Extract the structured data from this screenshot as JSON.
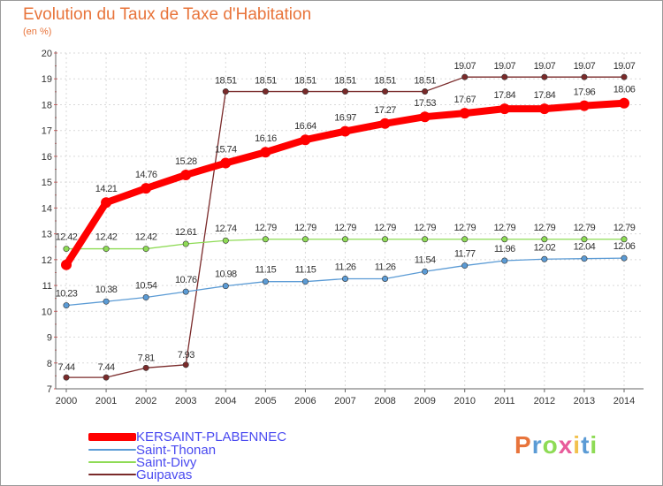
{
  "chart_data": {
    "type": "line",
    "title": "Evolution du Taux de Taxe d'Habitation",
    "unit_label": "(en %)",
    "x": [
      "2000",
      "2001",
      "2002",
      "2003",
      "2004",
      "2005",
      "2006",
      "2007",
      "2008",
      "2009",
      "2010",
      "2011",
      "2012",
      "2013",
      "2014"
    ],
    "ylim": [
      7,
      20
    ],
    "yticks": [
      "7",
      "8",
      "9",
      "10",
      "11",
      "12",
      "13",
      "14",
      "15",
      "16",
      "17",
      "18",
      "19",
      "20"
    ],
    "grid": true,
    "legend_position": "bottom-left",
    "series": [
      {
        "name": "KERSAINT-PLABENNEC",
        "color": "#ff0000",
        "values": [
          11.8,
          14.21,
          14.76,
          15.28,
          15.74,
          16.16,
          16.64,
          16.97,
          17.27,
          17.53,
          17.67,
          17.84,
          17.84,
          17.96,
          18.06
        ],
        "labels": [
          "",
          "14.21",
          "14.76",
          "15.28",
          "15.74",
          "16.16",
          "16.64",
          "16.97",
          "17.27",
          "17.53",
          "17.67",
          "17.84",
          "17.84",
          "17.96",
          "18.06"
        ]
      },
      {
        "name": "Saint-Thonan",
        "color": "#5b9bd5",
        "values": [
          10.23,
          10.38,
          10.54,
          10.76,
          10.98,
          11.15,
          11.15,
          11.26,
          11.26,
          11.54,
          11.77,
          11.96,
          12.02,
          12.04,
          12.06
        ],
        "labels": [
          "10.23",
          "10.38",
          "10.54",
          "10.76",
          "10.98",
          "11.15",
          "11.15",
          "11.26",
          "11.26",
          "11.54",
          "11.77",
          "11.96",
          "12.02",
          "12.04",
          "12.06"
        ]
      },
      {
        "name": "Saint-Divy",
        "color": "#8edb55",
        "values": [
          12.42,
          12.42,
          12.42,
          12.61,
          12.74,
          12.79,
          12.79,
          12.79,
          12.79,
          12.79,
          12.79,
          12.79,
          12.79,
          12.79,
          12.79
        ],
        "labels": [
          "12.42",
          "12.42",
          "12.42",
          "12.61",
          "12.74",
          "12.79",
          "12.79",
          "12.79",
          "12.79",
          "12.79",
          "12.79",
          "12.79",
          "12.79",
          "12.79",
          "12.79"
        ]
      },
      {
        "name": "Guipavas",
        "color": "#7a2a2a",
        "values": [
          7.44,
          7.44,
          7.81,
          7.93,
          18.51,
          18.51,
          18.51,
          18.51,
          18.51,
          18.51,
          19.07,
          19.07,
          19.07,
          19.07,
          19.07
        ],
        "labels": [
          "7.44",
          "7.44",
          "7.81",
          "7.93",
          "18.51",
          "18.51",
          "18.51",
          "18.51",
          "18.51",
          "18.51",
          "19.07",
          "19.07",
          "19.07",
          "19.07",
          "19.07"
        ]
      }
    ]
  },
  "logo": {
    "text": "Proxiti",
    "letter_colors": [
      "#e8743b",
      "#5b9bd5",
      "#8edb55",
      "#e85b9b",
      "#f2c14e",
      "#5b9bd5",
      "#8edb55"
    ]
  }
}
